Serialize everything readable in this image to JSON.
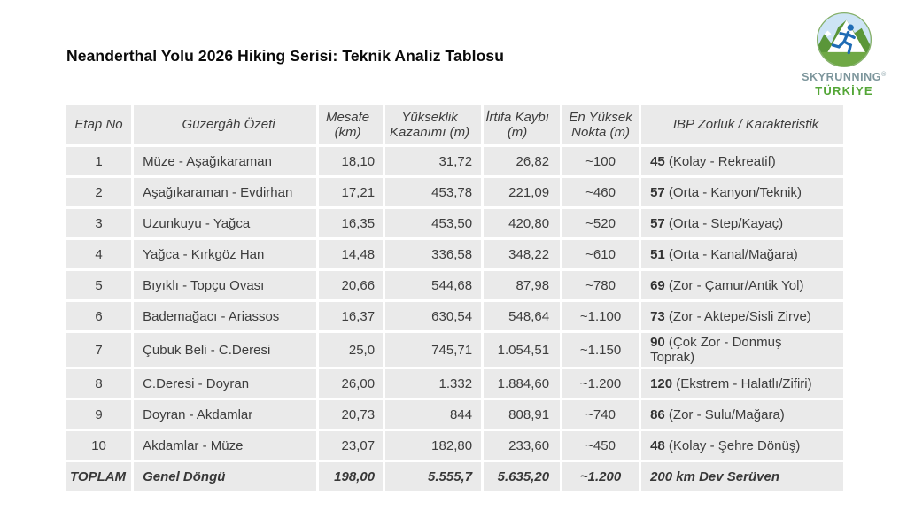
{
  "page": {
    "title": "Neanderthal Yolu 2026 Hiking Serisi: Teknik Analiz Tablosu"
  },
  "logo": {
    "brand": "SKYRUNNING",
    "registered": "®",
    "country": "TÜRKİYE"
  },
  "colors": {
    "cell_bg": "#eaeaea",
    "text": "#3d3d3d",
    "brand_gray": "#7d969c",
    "brand_green": "#54a637",
    "sky_blue": "#cde4f5",
    "mountain_green": "#5a9639",
    "ground_green": "#6fa845",
    "runner_blue": "#1f6cb5"
  },
  "table": {
    "headers": [
      "Etap No",
      "Güzergâh Özeti",
      "Mesafe (km)",
      "Yükseklik Kazanımı (m)",
      "İrtifa Kaybı (m)",
      "En Yüksek Nokta (m)",
      "IBP Zorluk / Karakteristik"
    ],
    "rows": [
      {
        "etap": "1",
        "guzergah": "Müze - Aşağıkaraman",
        "mesafe": "18,10",
        "yukseklik": "31,72",
        "irtifa": "26,82",
        "nokta": "~100",
        "ibp_score": "45",
        "ibp_desc": "(Kolay - Rekreatif)"
      },
      {
        "etap": "2",
        "guzergah": "Aşağıkaraman - Evdirhan",
        "mesafe": "17,21",
        "yukseklik": "453,78",
        "irtifa": "221,09",
        "nokta": "~460",
        "ibp_score": "57",
        "ibp_desc": "(Orta - Kanyon/Teknik)"
      },
      {
        "etap": "3",
        "guzergah": "Uzunkuyu - Yağca",
        "mesafe": "16,35",
        "yukseklik": "453,50",
        "irtifa": "420,80",
        "nokta": "~520",
        "ibp_score": "57",
        "ibp_desc": "(Orta - Step/Kayaç)"
      },
      {
        "etap": "4",
        "guzergah": "Yağca - Kırkgöz Han",
        "mesafe": "14,48",
        "yukseklik": "336,58",
        "irtifa": "348,22",
        "nokta": "~610",
        "ibp_score": "51",
        "ibp_desc": "(Orta - Kanal/Mağara)"
      },
      {
        "etap": "5",
        "guzergah": "Bıyıklı - Topçu Ovası",
        "mesafe": "20,66",
        "yukseklik": "544,68",
        "irtifa": "87,98",
        "nokta": "~780",
        "ibp_score": "69",
        "ibp_desc": "(Zor - Çamur/Antik Yol)"
      },
      {
        "etap": "6",
        "guzergah": "Bademağacı - Ariassos",
        "mesafe": "16,37",
        "yukseklik": "630,54",
        "irtifa": "548,64",
        "nokta": "~1.100",
        "ibp_score": "73",
        "ibp_desc": "(Zor - Aktepe/Sisli Zirve)"
      },
      {
        "etap": "7",
        "guzergah": "Çubuk Beli - C.Deresi",
        "mesafe": "25,0",
        "yukseklik": "745,71",
        "irtifa": "1.054,51",
        "nokta": "~1.150",
        "ibp_score": "90",
        "ibp_desc": "(Çok Zor - Donmuş\nToprak)"
      },
      {
        "etap": "8",
        "guzergah": "C.Deresi - Doyran",
        "mesafe": "26,00",
        "yukseklik": "1.332",
        "irtifa": "1.884,60",
        "nokta": "~1.200",
        "ibp_score": "120",
        "ibp_desc": "(Ekstrem - Halatlı/Zifiri)"
      },
      {
        "etap": "9",
        "guzergah": "Doyran - Akdamlar",
        "mesafe": "20,73",
        "yukseklik": "844",
        "irtifa": "808,91",
        "nokta": "~740",
        "ibp_score": "86",
        "ibp_desc": "(Zor - Sulu/Mağara)"
      },
      {
        "etap": "10",
        "guzergah": "Akdamlar - Müze",
        "mesafe": "23,07",
        "yukseklik": "182,80",
        "irtifa": "233,60",
        "nokta": "~450",
        "ibp_score": "48",
        "ibp_desc": "(Kolay - Şehre Dönüş)"
      }
    ],
    "total": {
      "etap": "TOPLAM",
      "guzergah": "Genel Döngü",
      "mesafe": "198,00",
      "yukseklik": "5.555,7",
      "irtifa": "5.635,20",
      "nokta": "~1.200",
      "ibp": "200 km Dev Serüven"
    }
  }
}
